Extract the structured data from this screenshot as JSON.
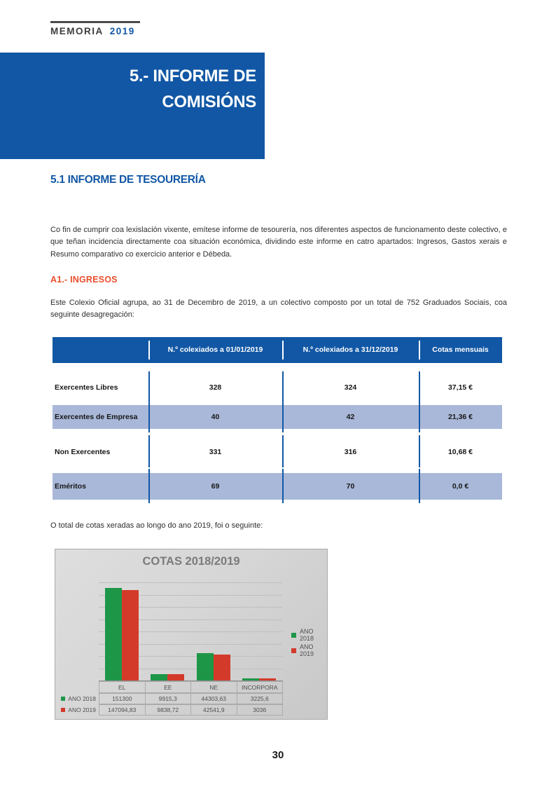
{
  "header": {
    "brand": "MEMORIA",
    "year": "2019"
  },
  "chapter": {
    "line1": "5.- INFORME DE",
    "line2": "COMISIÓNS"
  },
  "section_title": "5.1 INFORME DE TESOURERÍA",
  "intro_paragraph": "Co fin de cumprir coa lexislación vixente, emítese informe de tesourería, nos diferentes aspectos de funcionamento deste colectivo, e que teñan incidencia directamente coa situación económica, dividindo este informe en catro apartados: Ingresos, Gastos xerais e Resumo comparativo co exercicio anterior e Débeda.",
  "subsection_title": "A1.- INGRESOS",
  "ingresos_paragraph": "Este Colexio Oficial agrupa, ao 31 de Decembro de 2019, a un colectivo composto por un total de 752 Graduados Sociais, coa seguinte desagregación:",
  "cotas_paragraph": "O total de cotas xeradas ao longo do ano 2019, foi o seguinte:",
  "members_table": {
    "headers": [
      "",
      "N.º colexiados a 01/01/2019",
      "N.º colexiados a 31/12/2019",
      "Cotas mensuais"
    ],
    "rows": [
      {
        "label": "Exercentes Libres",
        "col1": "328",
        "col2": "324",
        "col3": "37,15 €"
      },
      {
        "label": "Exercentes de Empresa",
        "col1": "40",
        "col2": "42",
        "col3": "21,36 €"
      },
      {
        "label": "Non Exercentes",
        "col1": "331",
        "col2": "316",
        "col3": "10,68 €"
      },
      {
        "label": "Eméritos",
        "col1": "69",
        "col2": "70",
        "col3": "0,0 €"
      }
    ]
  },
  "chart_data": {
    "type": "bar",
    "title": "COTAS 2018/2019",
    "categories": [
      "EL",
      "EE",
      "NE",
      "INCORPORA"
    ],
    "series": [
      {
        "name": "ANO 2018",
        "color": "#1d9648",
        "values": [
          151300,
          9915.3,
          44303.63,
          3225.6
        ],
        "labels": [
          "151300",
          "9915,3",
          "44303,63",
          "3225,6"
        ]
      },
      {
        "name": "ANO 2019",
        "color": "#d33a2a",
        "values": [
          147094.83,
          9838.72,
          42541.9,
          3036
        ],
        "labels": [
          "147094,83",
          "9838,72",
          "42541,9",
          "3036"
        ]
      }
    ],
    "ylim": [
      0,
      160000
    ],
    "grid_step": 20000,
    "legend_position": "right",
    "grid": true,
    "data_table": true
  },
  "colors": {
    "brand_blue": "#1157a5",
    "row_alt_blue": "#a9b8d8",
    "accent_orange": "#e84e2c",
    "chart_green": "#1d9648",
    "chart_red": "#d33a2a"
  },
  "page_number": "30"
}
